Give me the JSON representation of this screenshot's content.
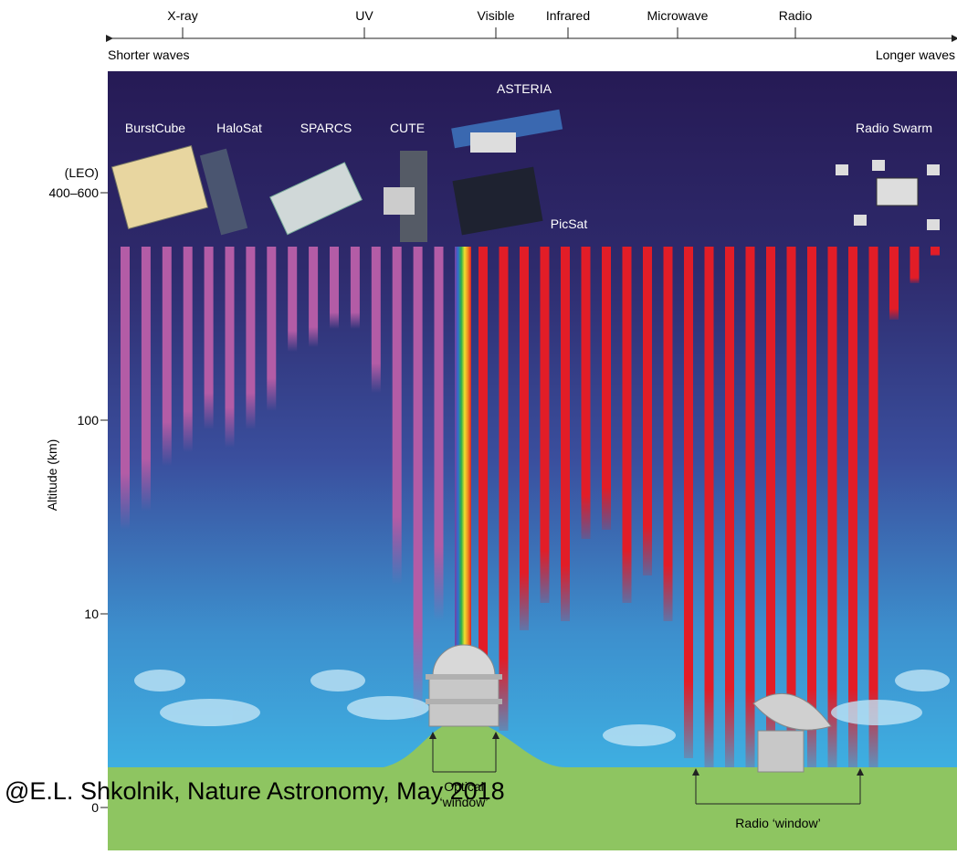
{
  "header": {
    "bands": [
      "X-ray",
      "UV",
      "Visible",
      "Infrared",
      "Microwave",
      "Radio"
    ],
    "shorter": "Shorter waves",
    "longer": "Longer waves"
  },
  "satellites": {
    "asteria": "ASTERIA",
    "burstcube": "BurstCube",
    "halosat": "HaloSat",
    "sparcs": "SPARCS",
    "cute": "CUTE",
    "picsat": "PicSat",
    "radio_swarm": "Radio Swarm"
  },
  "axis": {
    "label": "Altitude (km)",
    "leo": "(LEO)",
    "ticks": [
      "400–600",
      "100",
      "10",
      "0"
    ]
  },
  "windows": {
    "optical": [
      "Optical",
      "‘window’"
    ],
    "radio": "Radio ‘window’"
  },
  "credit": "@E.L. Shkolnik, Nature Astronomy, May 2018"
}
